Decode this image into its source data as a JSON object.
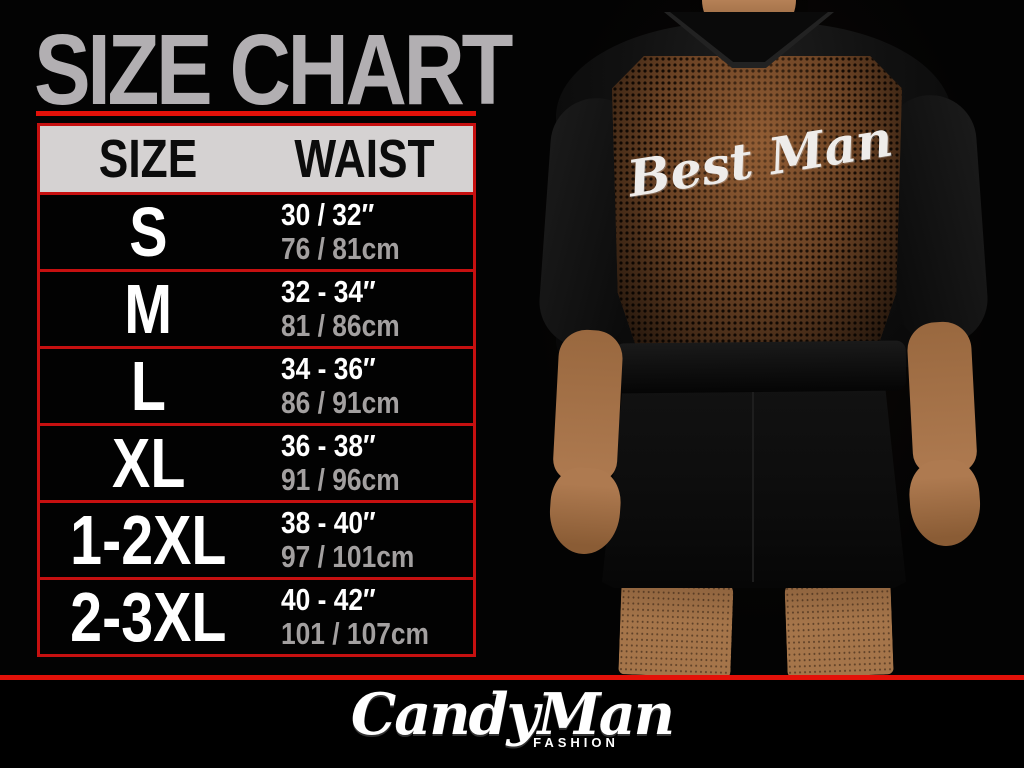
{
  "title": "SIZE CHART",
  "table": {
    "headers": [
      "SIZE",
      "WAIST"
    ],
    "rows": [
      {
        "size": "S",
        "waist_in": "30 / 32″",
        "waist_cm": "76 / 81cm"
      },
      {
        "size": "M",
        "waist_in": "32 - 34″",
        "waist_cm": "81 / 86cm"
      },
      {
        "size": "L",
        "waist_in": "34 - 36″",
        "waist_cm": "86 / 91cm"
      },
      {
        "size": "XL",
        "waist_in": "36 - 38″",
        "waist_cm": "91 / 96cm"
      },
      {
        "size": "1-2XL",
        "waist_in": "38 - 40″",
        "waist_cm": "97 / 101cm"
      },
      {
        "size": "2-3XL",
        "waist_in": "40 - 42″",
        "waist_cm": "101 / 107cm"
      }
    ]
  },
  "photo": {
    "garment_text": "Best Man",
    "description": "back view of man wearing black robe with sheer mesh back panel"
  },
  "brand": {
    "name": "CandyMan",
    "tagline": "FASHION"
  },
  "colors": {
    "background": "#030303",
    "accent_red": "#e31109",
    "table_border_red": "#c61010",
    "header_bg": "#d5d2d2",
    "title_gray": "#b2afb2",
    "cm_text_gray": "#a3a0a0",
    "mesh_brown": "#724727",
    "skin_tone": "#ae7a50"
  }
}
